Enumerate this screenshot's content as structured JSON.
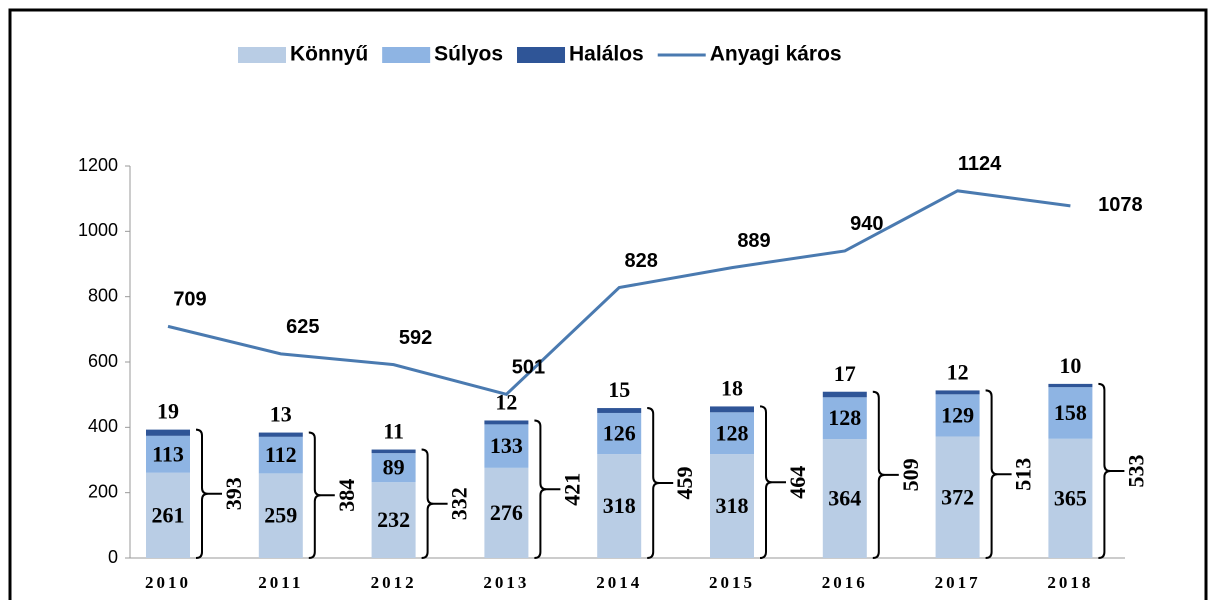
{
  "chart_data": {
    "type": "bar",
    "categories": [
      "2010",
      "2011",
      "2012",
      "2013",
      "2014",
      "2015",
      "2016",
      "2017",
      "2018"
    ],
    "series": [
      {
        "name": "Könnyű",
        "color": "#b9cde5",
        "values": [
          261,
          259,
          232,
          276,
          318,
          318,
          364,
          372,
          365
        ]
      },
      {
        "name": "Súlyos",
        "color": "#8eb4e3",
        "values": [
          113,
          112,
          89,
          133,
          126,
          128,
          128,
          129,
          158
        ]
      },
      {
        "name": "Halálos",
        "color": "#2f5597",
        "values": [
          19,
          13,
          11,
          12,
          15,
          18,
          17,
          12,
          10
        ]
      },
      {
        "name": "Anyagi káros",
        "color": "#4a7ab0",
        "type": "line",
        "values": [
          709,
          625,
          592,
          501,
          828,
          889,
          940,
          1124,
          1078
        ]
      }
    ],
    "totals": [
      393,
      384,
      332,
      421,
      459,
      464,
      509,
      513,
      533
    ],
    "ylim": [
      0,
      1200
    ],
    "yticks": [
      0,
      200,
      400,
      600,
      800,
      1000,
      1200
    ],
    "legend": "top"
  }
}
